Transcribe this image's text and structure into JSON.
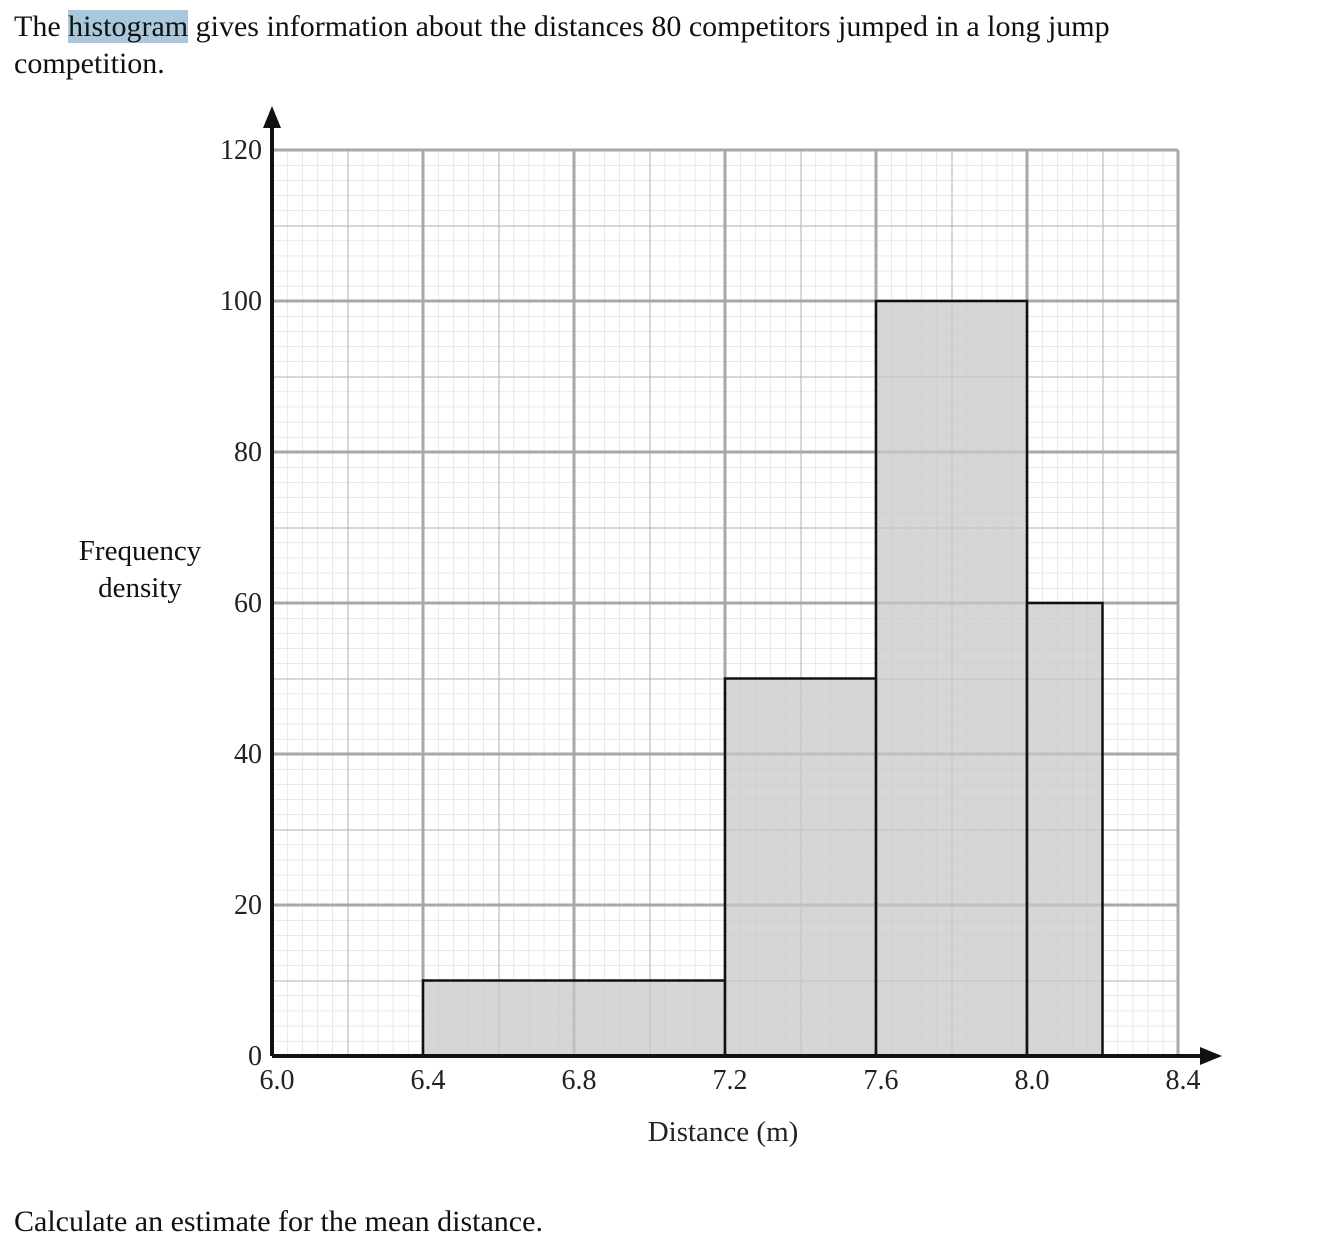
{
  "intro": [
    "The ",
    "histogram",
    " gives information about the distances 80 competitors jumped in a long jump competition."
  ],
  "chart_data": {
    "type": "histogram",
    "xlabel": "Distance (m)",
    "ylabel": "Frequency density",
    "bins": [
      6.4,
      7.2,
      7.6,
      8.0,
      8.2
    ],
    "values": [
      10,
      50,
      100,
      60
    ],
    "color": "#c8c8c8",
    "xlim": [
      6.0,
      8.4
    ],
    "xticks": [
      {
        "value": 6.0,
        "label": "6.0"
      },
      6.4,
      6.8,
      7.2,
      7.6,
      {
        "value": 8.0,
        "label": "8.0"
      },
      8.4
    ],
    "ylim": [
      0,
      120
    ],
    "yticks": [
      0,
      20,
      40,
      60,
      80,
      100,
      120
    ],
    "grid": true
  },
  "question": "Calculate an estimate for the mean distance."
}
